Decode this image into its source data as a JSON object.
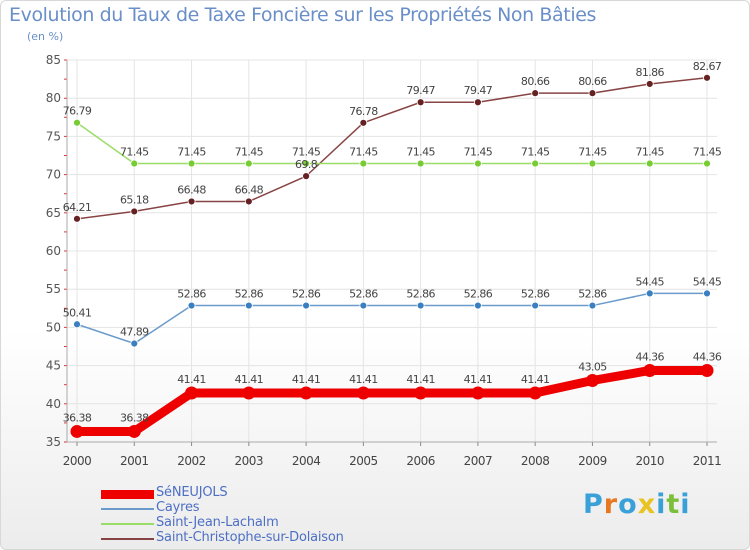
{
  "title": "Evolution du Taux de Taxe Foncière sur les Propriétés Non Bâties",
  "unit": "(en %)",
  "logo": {
    "letters": [
      "P",
      "r",
      "o",
      "x",
      "i",
      "t",
      "i"
    ],
    "colors": [
      "#3aa0d8",
      "#e87722",
      "#3aa0d8",
      "#e8c322",
      "#3aa0d8",
      "#7bbf3a",
      "#3aa0d8"
    ]
  },
  "chart_data": {
    "type": "line",
    "title": "Evolution du Taux de Taxe Foncière sur les Propriétés Non Bâties",
    "ylabel": "(en %)",
    "xlabel": "",
    "categories": [
      "2000",
      "2001",
      "2002",
      "2003",
      "2004",
      "2005",
      "2006",
      "2007",
      "2008",
      "2009",
      "2010",
      "2011"
    ],
    "ylim": [
      35,
      85
    ],
    "yticks": [
      35,
      40,
      45,
      50,
      55,
      60,
      65,
      70,
      75,
      80,
      85
    ],
    "grid": true,
    "legend_position": "bottom-left",
    "series": [
      {
        "name": "SéNEUJOLS",
        "color": "#ee0000",
        "marker": "#ee0000",
        "width": 9,
        "values": [
          36.38,
          36.38,
          41.41,
          41.41,
          41.41,
          41.41,
          41.41,
          41.41,
          41.41,
          43.05,
          44.36,
          44.36
        ],
        "labels": [
          "36.38",
          "36.38",
          "41.41",
          "41.41",
          "41.41",
          "41.41",
          "41.41",
          "41.41",
          "41.41",
          "43.05",
          "44.36",
          "44.36"
        ]
      },
      {
        "name": "Cayres",
        "color": "#6b9bcb",
        "marker": "#3a7fc0",
        "width": 1.5,
        "values": [
          50.41,
          47.89,
          52.86,
          52.86,
          52.86,
          52.86,
          52.86,
          52.86,
          52.86,
          52.86,
          54.45,
          54.45
        ],
        "labels": [
          "50.41",
          "47.89",
          "52.86",
          "52.86",
          "52.86",
          "52.86",
          "52.86",
          "52.86",
          "52.86",
          "52.86",
          "54.45",
          "54.45"
        ]
      },
      {
        "name": "Saint-Jean-Lachalm",
        "color": "#99dd66",
        "marker": "#77cc33",
        "width": 1.5,
        "values": [
          76.79,
          71.45,
          71.45,
          71.45,
          71.45,
          71.45,
          71.45,
          71.45,
          71.45,
          71.45,
          71.45,
          71.45
        ],
        "labels": [
          "76.79",
          "71.45",
          "71.45",
          "71.45",
          "71.45",
          "71.45",
          "71.45",
          "71.45",
          "71.45",
          "71.45",
          "71.45",
          "71.45"
        ]
      },
      {
        "name": "Saint-Christophe-sur-Dolaison",
        "color": "#884444",
        "marker": "#662222",
        "width": 1.5,
        "values": [
          64.21,
          65.18,
          66.48,
          66.48,
          69.8,
          76.78,
          79.47,
          79.47,
          80.66,
          80.66,
          81.86,
          82.67
        ],
        "labels": [
          "64.21",
          "65.18",
          "66.48",
          "66.48",
          "69.8",
          "76.78",
          "79.47",
          "79.47",
          "80.66",
          "80.66",
          "81.86",
          "82.67"
        ]
      }
    ]
  }
}
